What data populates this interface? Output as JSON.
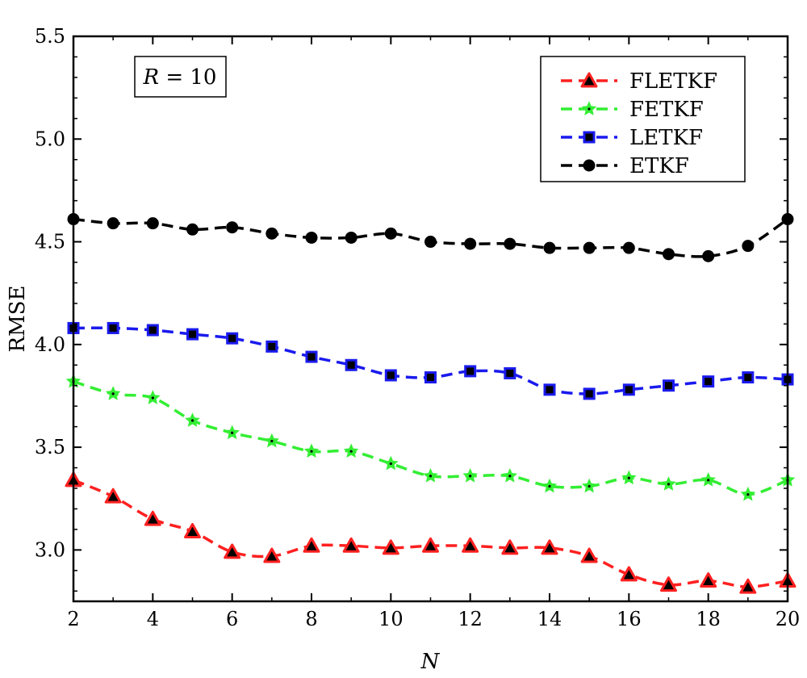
{
  "chart_data": {
    "type": "line",
    "xlabel": "N",
    "ylabel": "RMSE",
    "xlim": [
      2,
      20
    ],
    "ylim": [
      2.75,
      5.5
    ],
    "xticks": [
      2,
      4,
      6,
      8,
      10,
      12,
      14,
      16,
      18,
      20
    ],
    "yticks": [
      "3.0",
      "3.5",
      "4.0",
      "4.5",
      "5.0",
      "5.5"
    ],
    "grid": false,
    "legend_position": "top-right",
    "annotation": {
      "var": "R",
      "eq": " = 10"
    },
    "x": [
      2,
      3,
      4,
      5,
      6,
      7,
      8,
      9,
      10,
      11,
      12,
      13,
      14,
      15,
      16,
      17,
      18,
      19,
      20
    ],
    "series": [
      {
        "name": "FLETKF",
        "color": "#ff2020",
        "marker": "triangle",
        "values": [
          3.34,
          3.26,
          3.15,
          3.09,
          2.99,
          2.97,
          3.02,
          3.02,
          3.01,
          3.02,
          3.02,
          3.01,
          3.01,
          2.97,
          2.88,
          2.83,
          2.85,
          2.82,
          2.85
        ]
      },
      {
        "name": "FETKF",
        "color": "#33ee33",
        "marker": "star",
        "values": [
          3.82,
          3.76,
          3.74,
          3.63,
          3.57,
          3.53,
          3.48,
          3.48,
          3.42,
          3.36,
          3.36,
          3.36,
          3.31,
          3.31,
          3.35,
          3.32,
          3.34,
          3.27,
          3.34
        ]
      },
      {
        "name": "LETKF",
        "color": "#1a1aee",
        "marker": "square",
        "values": [
          4.08,
          4.08,
          4.07,
          4.05,
          4.03,
          3.99,
          3.94,
          3.9,
          3.85,
          3.84,
          3.87,
          3.86,
          3.78,
          3.76,
          3.78,
          3.8,
          3.82,
          3.84,
          3.83
        ]
      },
      {
        "name": "ETKF",
        "color": "#000000",
        "marker": "circle",
        "values": [
          4.61,
          4.59,
          4.59,
          4.56,
          4.57,
          4.54,
          4.52,
          4.52,
          4.54,
          4.5,
          4.49,
          4.49,
          4.47,
          4.47,
          4.47,
          4.44,
          4.43,
          4.48,
          4.61
        ]
      }
    ]
  }
}
